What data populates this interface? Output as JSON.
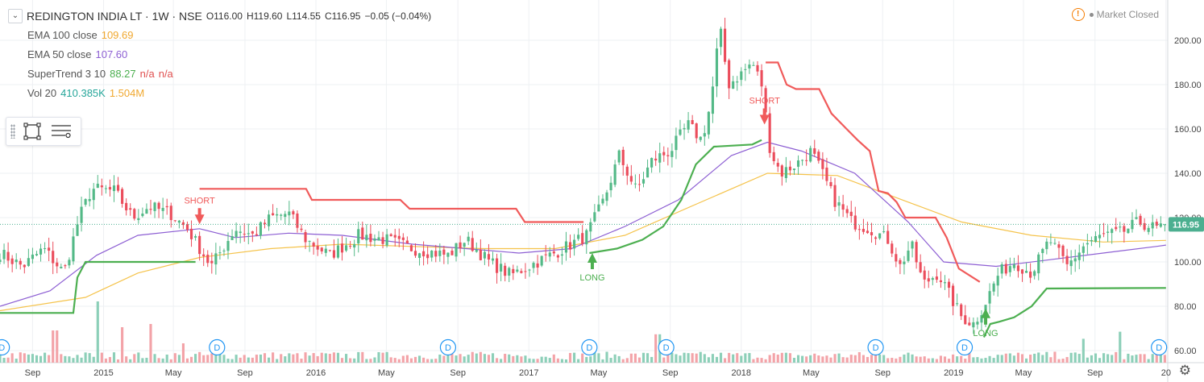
{
  "header": {
    "collapse_icon": "chevron-down-icon",
    "title": "REDINGTON INDIA LT · 1W · NSE",
    "open": "O116.00",
    "high": "H119.60",
    "low": "L114.55",
    "close": "C116.95",
    "change": "−0.05 (−0.04%)"
  },
  "indicators": {
    "ema100_name": "EMA 100 close",
    "ema100_value": "109.69",
    "ema50_name": "EMA 50 close",
    "ema50_value": "107.60",
    "supertrend_name": "SuperTrend 3 10",
    "supertrend_value": "88.27",
    "supertrend_na1": "n/a",
    "supertrend_na2": "n/a",
    "vol_name": "Vol 20",
    "vol_value": "410.385K",
    "vol_ma_value": "1.504M"
  },
  "status": {
    "text": "Market Closed",
    "icon": "warning-icon"
  },
  "toolbar": {
    "icons": [
      "select-frame-icon",
      "list-icon"
    ]
  },
  "colors": {
    "up": "#53b987",
    "down": "#eb4d5c",
    "ema100": "#f5c34b",
    "ema50": "#8d5fd3",
    "st_up": "#4caf50",
    "st_down": "#f05a5a",
    "vol_up": "#8ccfb8",
    "vol_down": "#f3a3a8",
    "price_label_bg": "#4caf90",
    "grid": "#eef0f3"
  },
  "chart_data": {
    "type": "candlestick",
    "interval": "1W",
    "x_labels": [
      "Sep",
      "2015",
      "May",
      "Sep",
      "2016",
      "May",
      "Sep",
      "2017",
      "May",
      "Sep",
      "2018",
      "May",
      "Sep",
      "2019",
      "May",
      "Sep",
      "20"
    ],
    "x_label_dates": [
      "2014-09-01",
      "2015-01-01",
      "2015-05-01",
      "2015-09-01",
      "2016-01-01",
      "2016-05-01",
      "2016-09-01",
      "2017-01-01",
      "2017-05-01",
      "2017-09-01",
      "2018-01-01",
      "2018-05-01",
      "2018-09-01",
      "2019-01-01",
      "2019-05-01",
      "2019-09-01",
      "2020-01-01"
    ],
    "y_ticks": [
      60,
      80,
      100,
      120,
      140,
      160,
      180,
      200
    ],
    "y_tick_labels": [
      "60.00",
      "80.00",
      "100.00",
      "120.00",
      "140.00",
      "160.00",
      "180.00",
      "200.00"
    ],
    "ylim": [
      56,
      214
    ],
    "last_price": 116.95,
    "last_price_label": "116.95",
    "close_path": [
      [
        "2014-07-07",
        104
      ],
      [
        "2014-08-15",
        98
      ],
      [
        "2014-09-20",
        106
      ],
      [
        "2014-10-25",
        95
      ],
      [
        "2014-11-20",
        120
      ],
      [
        "2014-12-12",
        133
      ],
      [
        "2015-01-20",
        132
      ],
      [
        "2015-02-20",
        120
      ],
      [
        "2015-03-20",
        125
      ],
      [
        "2015-04-25",
        122
      ],
      [
        "2015-05-25",
        115
      ],
      [
        "2015-06-18",
        105
      ],
      [
        "2015-07-05",
        98
      ],
      [
        "2015-08-15",
        115
      ],
      [
        "2015-09-15",
        112
      ],
      [
        "2015-10-15",
        120
      ],
      [
        "2015-11-15",
        122
      ],
      [
        "2015-12-15",
        110
      ],
      [
        "2016-01-25",
        103
      ],
      [
        "2016-03-15",
        112
      ],
      [
        "2016-05-01",
        110
      ],
      [
        "2016-06-15",
        106
      ],
      [
        "2016-08-15",
        103
      ],
      [
        "2016-09-15",
        110
      ],
      [
        "2016-10-25",
        100
      ],
      [
        "2016-12-01",
        94
      ],
      [
        "2017-01-15",
        100
      ],
      [
        "2017-03-01",
        106
      ],
      [
        "2017-04-10",
        112
      ],
      [
        "2017-05-10",
        128
      ],
      [
        "2017-06-05",
        148
      ],
      [
        "2017-07-05",
        132
      ],
      [
        "2017-08-01",
        146
      ],
      [
        "2017-09-01",
        150
      ],
      [
        "2017-10-01",
        162
      ],
      [
        "2017-10-25",
        155
      ],
      [
        "2017-11-10",
        172
      ],
      [
        "2017-11-25",
        206
      ],
      [
        "2017-12-10",
        180
      ],
      [
        "2018-01-01",
        185
      ],
      [
        "2018-01-20",
        190
      ],
      [
        "2018-02-05",
        180
      ],
      [
        "2018-02-20",
        150
      ],
      [
        "2018-03-10",
        140
      ],
      [
        "2018-04-10",
        145
      ],
      [
        "2018-05-01",
        150
      ],
      [
        "2018-05-20",
        140
      ],
      [
        "2018-06-10",
        128
      ],
      [
        "2018-07-10",
        118
      ],
      [
        "2018-08-10",
        115
      ],
      [
        "2018-09-10",
        110
      ],
      [
        "2018-10-01",
        98
      ],
      [
        "2018-10-20",
        108
      ],
      [
        "2018-11-10",
        90
      ],
      [
        "2018-12-05",
        95
      ],
      [
        "2018-12-25",
        85
      ],
      [
        "2019-01-15",
        75
      ],
      [
        "2019-02-05",
        72
      ],
      [
        "2019-02-25",
        82
      ],
      [
        "2019-03-20",
        95
      ],
      [
        "2019-04-15",
        100
      ],
      [
        "2019-05-15",
        95
      ],
      [
        "2019-06-15",
        110
      ],
      [
        "2019-07-15",
        98
      ],
      [
        "2019-08-15",
        108
      ],
      [
        "2019-09-15",
        112
      ],
      [
        "2019-10-15",
        113
      ],
      [
        "2019-11-15",
        118
      ],
      [
        "2019-12-15",
        115
      ],
      [
        "2020-01-01",
        117
      ]
    ],
    "ema50": [
      [
        "2014-07-07",
        80
      ],
      [
        "2014-10-01",
        87
      ],
      [
        "2014-12-20",
        103
      ],
      [
        "2015-03-01",
        112
      ],
      [
        "2015-06-15",
        115
      ],
      [
        "2015-08-15",
        111
      ],
      [
        "2015-11-15",
        113
      ],
      [
        "2016-02-15",
        112
      ],
      [
        "2016-06-15",
        108
      ],
      [
        "2016-09-15",
        106
      ],
      [
        "2016-12-15",
        104
      ],
      [
        "2017-03-15",
        106
      ],
      [
        "2017-06-15",
        116
      ],
      [
        "2017-09-15",
        128
      ],
      [
        "2017-12-15",
        148
      ],
      [
        "2018-02-15",
        154
      ],
      [
        "2018-04-15",
        150
      ],
      [
        "2018-07-15",
        140
      ],
      [
        "2018-10-15",
        118
      ],
      [
        "2018-12-15",
        100
      ],
      [
        "2019-03-15",
        98
      ],
      [
        "2019-06-15",
        101
      ],
      [
        "2019-09-15",
        104
      ],
      [
        "2019-12-15",
        107
      ],
      [
        "2020-01-01",
        107.6
      ]
    ],
    "ema100": [
      [
        "2014-07-07",
        78
      ],
      [
        "2014-12-01",
        84
      ],
      [
        "2015-03-01",
        95
      ],
      [
        "2015-06-15",
        102
      ],
      [
        "2015-10-15",
        106
      ],
      [
        "2016-02-15",
        108
      ],
      [
        "2016-06-15",
        107
      ],
      [
        "2016-10-15",
        106
      ],
      [
        "2017-02-15",
        106
      ],
      [
        "2017-06-15",
        112
      ],
      [
        "2017-10-15",
        126
      ],
      [
        "2018-02-15",
        140
      ],
      [
        "2018-06-15",
        139
      ],
      [
        "2018-10-15",
        127
      ],
      [
        "2019-01-15",
        118
      ],
      [
        "2019-05-15",
        112
      ],
      [
        "2019-09-15",
        109
      ],
      [
        "2020-01-01",
        109.7
      ]
    ],
    "supertrend": [
      {
        "dir": "up",
        "points": [
          [
            "2014-07-07",
            77
          ],
          [
            "2014-11-10",
            77
          ],
          [
            "2014-11-17",
            93
          ],
          [
            "2014-12-01",
            100
          ],
          [
            "2015-06-08",
            100
          ]
        ]
      },
      {
        "dir": "down",
        "points": [
          [
            "2015-06-15",
            133
          ],
          [
            "2015-12-15",
            133
          ],
          [
            "2015-12-25",
            128
          ],
          [
            "2016-05-25",
            128
          ],
          [
            "2016-06-10",
            124
          ],
          [
            "2016-12-10",
            124
          ],
          [
            "2016-12-25",
            118
          ],
          [
            "2017-04-05",
            118
          ]
        ]
      },
      {
        "dir": "up",
        "points": [
          [
            "2017-04-15",
            104
          ],
          [
            "2017-06-01",
            106
          ],
          [
            "2017-07-15",
            110
          ],
          [
            "2017-08-20",
            116
          ],
          [
            "2017-09-20",
            128
          ],
          [
            "2017-10-15",
            144
          ],
          [
            "2017-11-15",
            152
          ],
          [
            "2018-01-20",
            153
          ],
          [
            "2018-02-05",
            155
          ]
        ]
      },
      {
        "dir": "down",
        "points": [
          [
            "2018-02-12",
            190
          ],
          [
            "2018-03-05",
            190
          ],
          [
            "2018-03-20",
            180
          ],
          [
            "2018-04-05",
            178
          ],
          [
            "2018-05-15",
            178
          ],
          [
            "2018-06-05",
            167
          ],
          [
            "2018-07-01",
            160
          ],
          [
            "2018-07-20",
            155
          ],
          [
            "2018-08-10",
            150
          ],
          [
            "2018-08-25",
            132
          ],
          [
            "2018-09-10",
            131
          ],
          [
            "2018-09-25",
            127
          ],
          [
            "2018-10-10",
            120
          ],
          [
            "2018-12-01",
            120
          ],
          [
            "2018-12-20",
            111
          ],
          [
            "2019-01-10",
            97
          ],
          [
            "2019-02-15",
            91
          ]
        ]
      },
      {
        "dir": "up",
        "points": [
          [
            "2019-02-22",
            66
          ],
          [
            "2019-03-05",
            72
          ],
          [
            "2019-03-20",
            73
          ],
          [
            "2019-04-15",
            75
          ],
          [
            "2019-05-15",
            80
          ],
          [
            "2019-06-10",
            88
          ],
          [
            "2020-01-01",
            88.27
          ]
        ]
      }
    ],
    "signals": [
      {
        "type": "short",
        "date": "2015-06-15",
        "price": 117,
        "label": "SHORT"
      },
      {
        "type": "long",
        "date": "2017-04-20",
        "price": 104,
        "label": "LONG"
      },
      {
        "type": "short",
        "date": "2018-02-10",
        "price": 162,
        "label": "SHORT"
      },
      {
        "type": "long",
        "date": "2019-02-25",
        "price": 79,
        "label": "LONG"
      }
    ],
    "dividend_markers": [
      "2014-07-10",
      "2015-07-15",
      "2016-08-15",
      "2017-04-15",
      "2017-08-25",
      "2018-08-20",
      "2019-01-20",
      "2019-12-20"
    ],
    "dividend_label": "D",
    "volume_spikes": [
      [
        "2014-10-10",
        0.5
      ],
      [
        "2014-12-20",
        0.95
      ],
      [
        "2015-02-01",
        0.55
      ],
      [
        "2015-03-25",
        0.6
      ],
      [
        "2015-05-20",
        0.3
      ],
      [
        "2017-08-10",
        0.44
      ],
      [
        "2019-08-10",
        0.37
      ],
      [
        "2019-10-15",
        0.48
      ],
      [
        "2020-01-01",
        0.12
      ]
    ]
  }
}
